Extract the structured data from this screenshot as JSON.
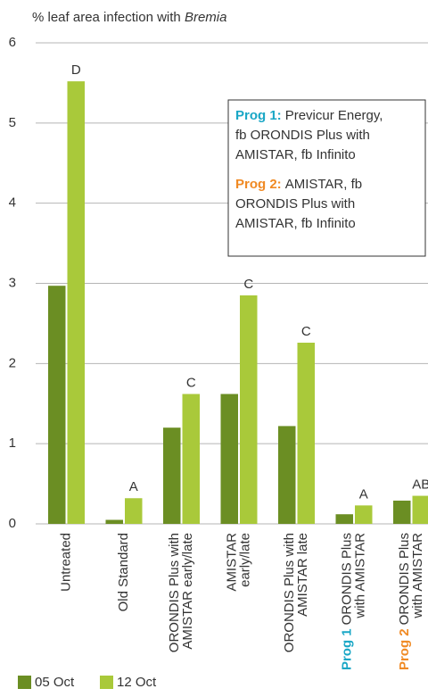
{
  "chart_data": {
    "type": "bar",
    "title": "% leaf area infection with ",
    "title_italic": "Bremia",
    "categories": [
      {
        "lines": [
          "Untreated"
        ]
      },
      {
        "lines": [
          "Old Standard"
        ]
      },
      {
        "lines": [
          "ORONDIS Plus with",
          "AMISTAR early/late"
        ]
      },
      {
        "lines": [
          "AMISTAR",
          "early/late"
        ]
      },
      {
        "lines": [
          "ORONDIS Plus with",
          "AMISTAR late"
        ]
      },
      {
        "tag": "Prog 1",
        "tag_color": "#1aa7c6",
        "lines": [
          "ORONDIS Plus",
          "with AMISTAR"
        ]
      },
      {
        "tag": "Prog 2",
        "tag_color": "#f08a24",
        "lines": [
          "ORONDIS Plus",
          "with AMISTAR"
        ]
      }
    ],
    "series": [
      {
        "name": "05 Oct",
        "color": "#6b8e23",
        "values": [
          2.97,
          0.05,
          1.2,
          1.62,
          1.22,
          0.12,
          0.29
        ]
      },
      {
        "name": "12 Oct",
        "color": "#a9c93a",
        "values": [
          5.52,
          0.32,
          1.62,
          2.85,
          2.26,
          0.23,
          0.35
        ]
      }
    ],
    "annotations": [
      "D",
      "A",
      "C",
      "C",
      "C",
      "A",
      "AB"
    ],
    "ylim": [
      0,
      6
    ],
    "yticks": [
      0,
      1,
      2,
      3,
      4,
      5,
      6
    ],
    "grid": true,
    "notes": [
      {
        "label": "Prog 1:",
        "color": "#1aa7c6",
        "lines": [
          "Previcur Energy,",
          "fb ORONDIS Plus with",
          "AMISTAR, fb Infinito"
        ]
      },
      {
        "label": "Prog 2:",
        "color": "#f08a24",
        "lines": [
          "AMISTAR, fb",
          "ORONDIS Plus with",
          "AMISTAR, fb Infinito"
        ]
      }
    ]
  }
}
